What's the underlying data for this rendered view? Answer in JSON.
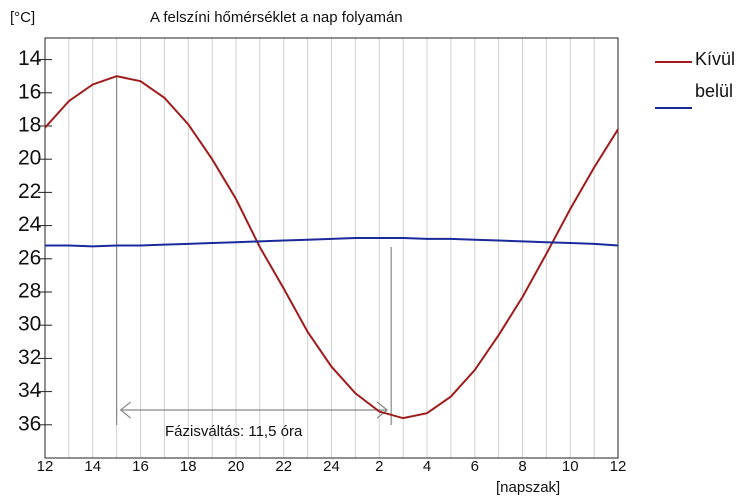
{
  "chart_data": {
    "type": "line",
    "title": "A felszíni hőmérséklet a nap folyamán",
    "y_label": "[°C]",
    "x_label": "[napszak]",
    "annotation": "Fázisváltás: 11,5 óra",
    "categories": [
      "12",
      null,
      "14",
      null,
      "16",
      null,
      "18",
      null,
      "20",
      null,
      "22",
      null,
      "24",
      null,
      "2",
      null,
      "4",
      null,
      "6",
      null,
      "8",
      null,
      "10",
      null,
      "12"
    ],
    "series": [
      {
        "name": "Kívül",
        "color": "#a01c1c",
        "values": [
          18.1,
          16.5,
          15.5,
          15.0,
          15.3,
          16.3,
          17.9,
          20.0,
          22.4,
          25.3,
          27.8,
          30.4,
          32.5,
          34.1,
          35.2,
          35.6,
          35.3,
          34.3,
          32.7,
          30.6,
          28.3,
          25.7,
          23.0,
          20.5,
          18.2
        ]
      },
      {
        "name": "belül",
        "color": "#1a2a9a",
        "values": [
          25.2,
          25.2,
          25.25,
          25.2,
          25.2,
          25.15,
          25.1,
          25.05,
          25.0,
          24.95,
          24.9,
          24.85,
          24.8,
          24.75,
          24.75,
          24.75,
          24.8,
          24.8,
          24.85,
          24.9,
          24.95,
          25.0,
          25.05,
          25.1,
          25.2
        ]
      }
    ],
    "ylim": [
      38,
      12.7
    ],
    "yticks": [
      14,
      16,
      18,
      20,
      22,
      24,
      26,
      28,
      30,
      32,
      34,
      36
    ],
    "grid": true
  }
}
